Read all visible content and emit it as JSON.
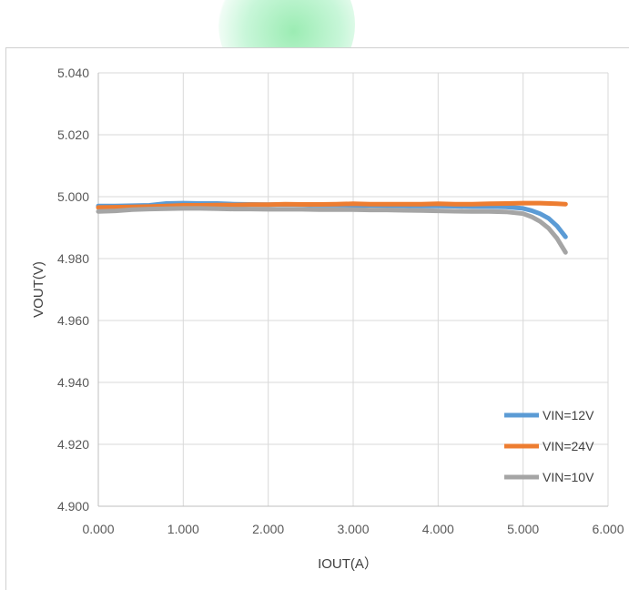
{
  "chart_data": {
    "type": "line",
    "xlabel": "IOUT(A）",
    "ylabel": "VOUT(V)",
    "xlim": [
      0,
      6
    ],
    "ylim": [
      4.9,
      5.04
    ],
    "x_ticks": [
      "0.000",
      "1.000",
      "2.000",
      "3.000",
      "4.000",
      "5.000",
      "6.000"
    ],
    "y_ticks": [
      "4.900",
      "4.920",
      "4.940",
      "4.960",
      "4.980",
      "5.000",
      "5.020",
      "5.040"
    ],
    "grid": true,
    "legend_position": "bottom-right",
    "series": [
      {
        "name": "VIN=12V",
        "color": "#5b9bd5",
        "x": [
          0.0,
          0.2,
          0.4,
          0.6,
          0.8,
          1.0,
          1.2,
          1.4,
          1.6,
          1.8,
          2.0,
          2.2,
          2.4,
          2.6,
          2.8,
          3.0,
          3.2,
          3.4,
          3.6,
          3.8,
          4.0,
          4.2,
          4.4,
          4.6,
          4.8,
          5.0,
          5.1,
          5.2,
          5.3,
          5.4,
          5.5
        ],
        "y": [
          4.997,
          4.997,
          4.9971,
          4.9972,
          4.9978,
          4.9979,
          4.9978,
          4.9978,
          4.9976,
          4.9975,
          4.9974,
          4.9975,
          4.9974,
          4.9973,
          4.9973,
          4.9972,
          4.9972,
          4.9971,
          4.9971,
          4.997,
          4.997,
          4.9969,
          4.9968,
          4.9968,
          4.9967,
          4.9962,
          4.9955,
          4.9945,
          4.993,
          4.9905,
          4.987
        ]
      },
      {
        "name": "VIN=24V",
        "color": "#ed7d31",
        "x": [
          0.0,
          0.2,
          0.4,
          0.6,
          0.8,
          1.0,
          1.2,
          1.4,
          1.6,
          1.8,
          2.0,
          2.2,
          2.4,
          2.6,
          2.8,
          3.0,
          3.2,
          3.4,
          3.6,
          3.8,
          4.0,
          4.2,
          4.4,
          4.6,
          4.8,
          5.0,
          5.2,
          5.4,
          5.5
        ],
        "y": [
          4.9965,
          4.9966,
          4.9967,
          4.9968,
          4.997,
          4.9972,
          4.9972,
          4.9973,
          4.9973,
          4.9974,
          4.9974,
          4.9976,
          4.9975,
          4.9975,
          4.9976,
          4.9977,
          4.9976,
          4.9976,
          4.9976,
          4.9976,
          4.9977,
          4.9976,
          4.9976,
          4.9977,
          4.9978,
          4.9979,
          4.9979,
          4.9977,
          4.9976
        ]
      },
      {
        "name": "VIN=10V",
        "color": "#a5a5a5",
        "x": [
          0.0,
          0.2,
          0.4,
          0.6,
          0.8,
          1.0,
          1.2,
          1.4,
          1.6,
          1.8,
          2.0,
          2.2,
          2.4,
          2.6,
          2.8,
          3.0,
          3.2,
          3.4,
          3.6,
          3.8,
          4.0,
          4.2,
          4.4,
          4.6,
          4.8,
          5.0,
          5.1,
          5.2,
          5.3,
          5.4,
          5.5
        ],
        "y": [
          4.9952,
          4.9954,
          4.9958,
          4.996,
          4.9961,
          4.9962,
          4.9962,
          4.9961,
          4.996,
          4.996,
          4.9959,
          4.9959,
          4.9959,
          4.9958,
          4.9958,
          4.9958,
          4.9957,
          4.9957,
          4.9956,
          4.9955,
          4.9954,
          4.9953,
          4.9952,
          4.9952,
          4.9951,
          4.9945,
          4.9935,
          4.992,
          4.9898,
          4.9865,
          4.982
        ]
      }
    ]
  }
}
